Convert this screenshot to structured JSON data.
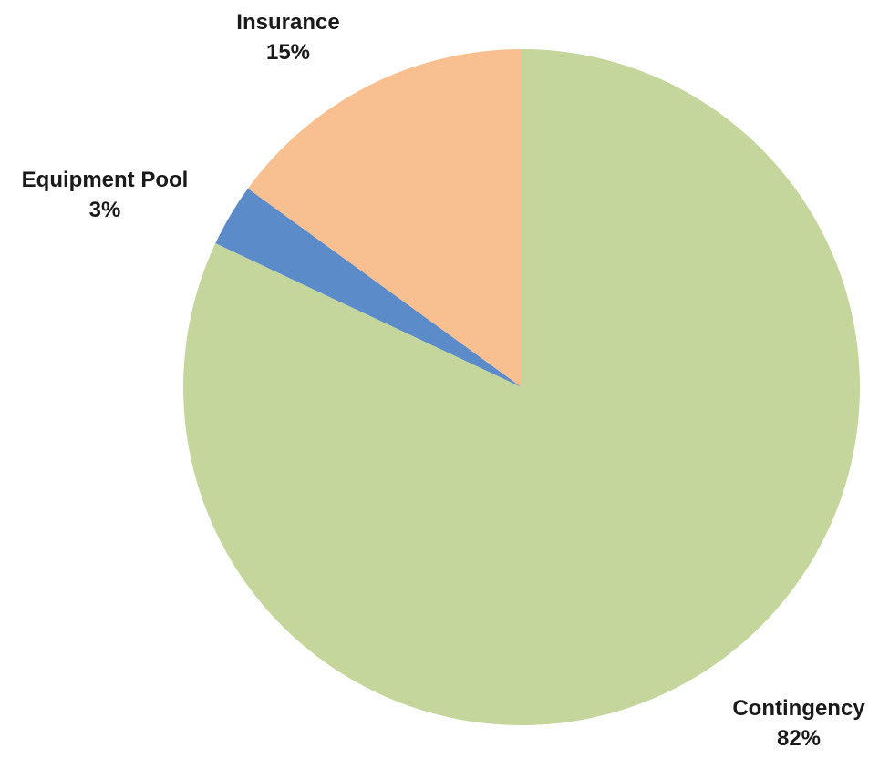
{
  "chart_data": {
    "type": "pie",
    "title": "",
    "categories": [
      "Contingency",
      "Equipment Pool",
      "Insurance"
    ],
    "values": [
      82,
      3,
      15
    ],
    "value_labels": [
      "82%",
      "3%",
      "15%"
    ],
    "colors": [
      "#c4d69b",
      "#5b8bc9",
      "#f8c090"
    ],
    "start": "12 o'clock",
    "direction": "clockwise",
    "legend": "none",
    "data_labels": "outside, category name and percentage"
  }
}
